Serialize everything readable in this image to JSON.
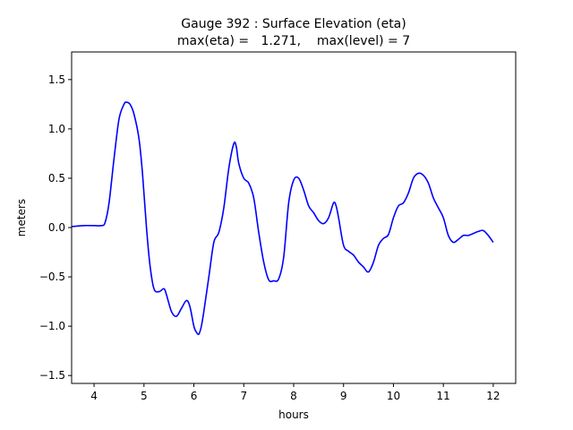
{
  "chart_data": {
    "type": "line",
    "title_line1": "Gauge 392 : Surface Elevation (eta)",
    "title_line2": "max(eta) =   1.271,    max(level) = 7",
    "xlabel": "hours",
    "ylabel": "meters",
    "xlim": [
      3.55,
      12.45
    ],
    "ylim": [
      -1.58,
      1.78
    ],
    "xticks": [
      4,
      5,
      6,
      7,
      8,
      9,
      10,
      11,
      12
    ],
    "xtick_labels": [
      "4",
      "5",
      "6",
      "7",
      "8",
      "9",
      "10",
      "11",
      "12"
    ],
    "yticks": [
      -1.5,
      -1.0,
      -0.5,
      0.0,
      0.5,
      1.0,
      1.5
    ],
    "ytick_labels": [
      "−1.5",
      "−1.0",
      "−0.5",
      "0.0",
      "0.5",
      "1.0",
      "1.5"
    ],
    "grid": false,
    "series": [
      {
        "color": "#0000ff",
        "x": [
          3.55,
          3.8,
          4.0,
          4.15,
          4.22,
          4.3,
          4.4,
          4.5,
          4.6,
          4.65,
          4.72,
          4.8,
          4.9,
          4.97,
          5.05,
          5.12,
          5.2,
          5.3,
          5.4,
          5.45,
          5.55,
          5.65,
          5.75,
          5.85,
          5.92,
          6.0,
          6.05,
          6.1,
          6.15,
          6.2,
          6.3,
          6.4,
          6.5,
          6.6,
          6.7,
          6.8,
          6.85,
          6.9,
          7.0,
          7.1,
          7.2,
          7.3,
          7.4,
          7.5,
          7.6,
          7.7,
          7.8,
          7.9,
          8.0,
          8.1,
          8.2,
          8.3,
          8.4,
          8.5,
          8.6,
          8.7,
          8.8,
          8.85,
          8.9,
          9.0,
          9.1,
          9.2,
          9.3,
          9.4,
          9.5,
          9.6,
          9.7,
          9.8,
          9.9,
          10.0,
          10.1,
          10.2,
          10.3,
          10.4,
          10.5,
          10.6,
          10.7,
          10.8,
          10.9,
          11.0,
          11.1,
          11.2,
          11.3,
          11.4,
          11.5,
          11.6,
          11.7,
          11.8,
          11.9,
          12.0
        ],
        "y": [
          0.01,
          0.02,
          0.02,
          0.02,
          0.05,
          0.25,
          0.7,
          1.1,
          1.25,
          1.27,
          1.25,
          1.15,
          0.9,
          0.55,
          0.0,
          -0.38,
          -0.62,
          -0.65,
          -0.62,
          -0.68,
          -0.85,
          -0.9,
          -0.82,
          -0.74,
          -0.8,
          -1.0,
          -1.06,
          -1.08,
          -1.0,
          -0.85,
          -0.5,
          -0.15,
          -0.05,
          0.2,
          0.6,
          0.85,
          0.82,
          0.65,
          0.5,
          0.45,
          0.3,
          -0.05,
          -0.35,
          -0.53,
          -0.54,
          -0.52,
          -0.3,
          0.25,
          0.48,
          0.5,
          0.38,
          0.22,
          0.15,
          0.07,
          0.04,
          0.1,
          0.25,
          0.22,
          0.1,
          -0.18,
          -0.24,
          -0.28,
          -0.35,
          -0.4,
          -0.45,
          -0.35,
          -0.18,
          -0.11,
          -0.07,
          0.1,
          0.22,
          0.25,
          0.35,
          0.5,
          0.55,
          0.53,
          0.45,
          0.3,
          0.2,
          0.1,
          -0.08,
          -0.15,
          -0.12,
          -0.08,
          -0.08,
          -0.06,
          -0.04,
          -0.03,
          -0.08,
          -0.15
        ]
      }
    ]
  }
}
